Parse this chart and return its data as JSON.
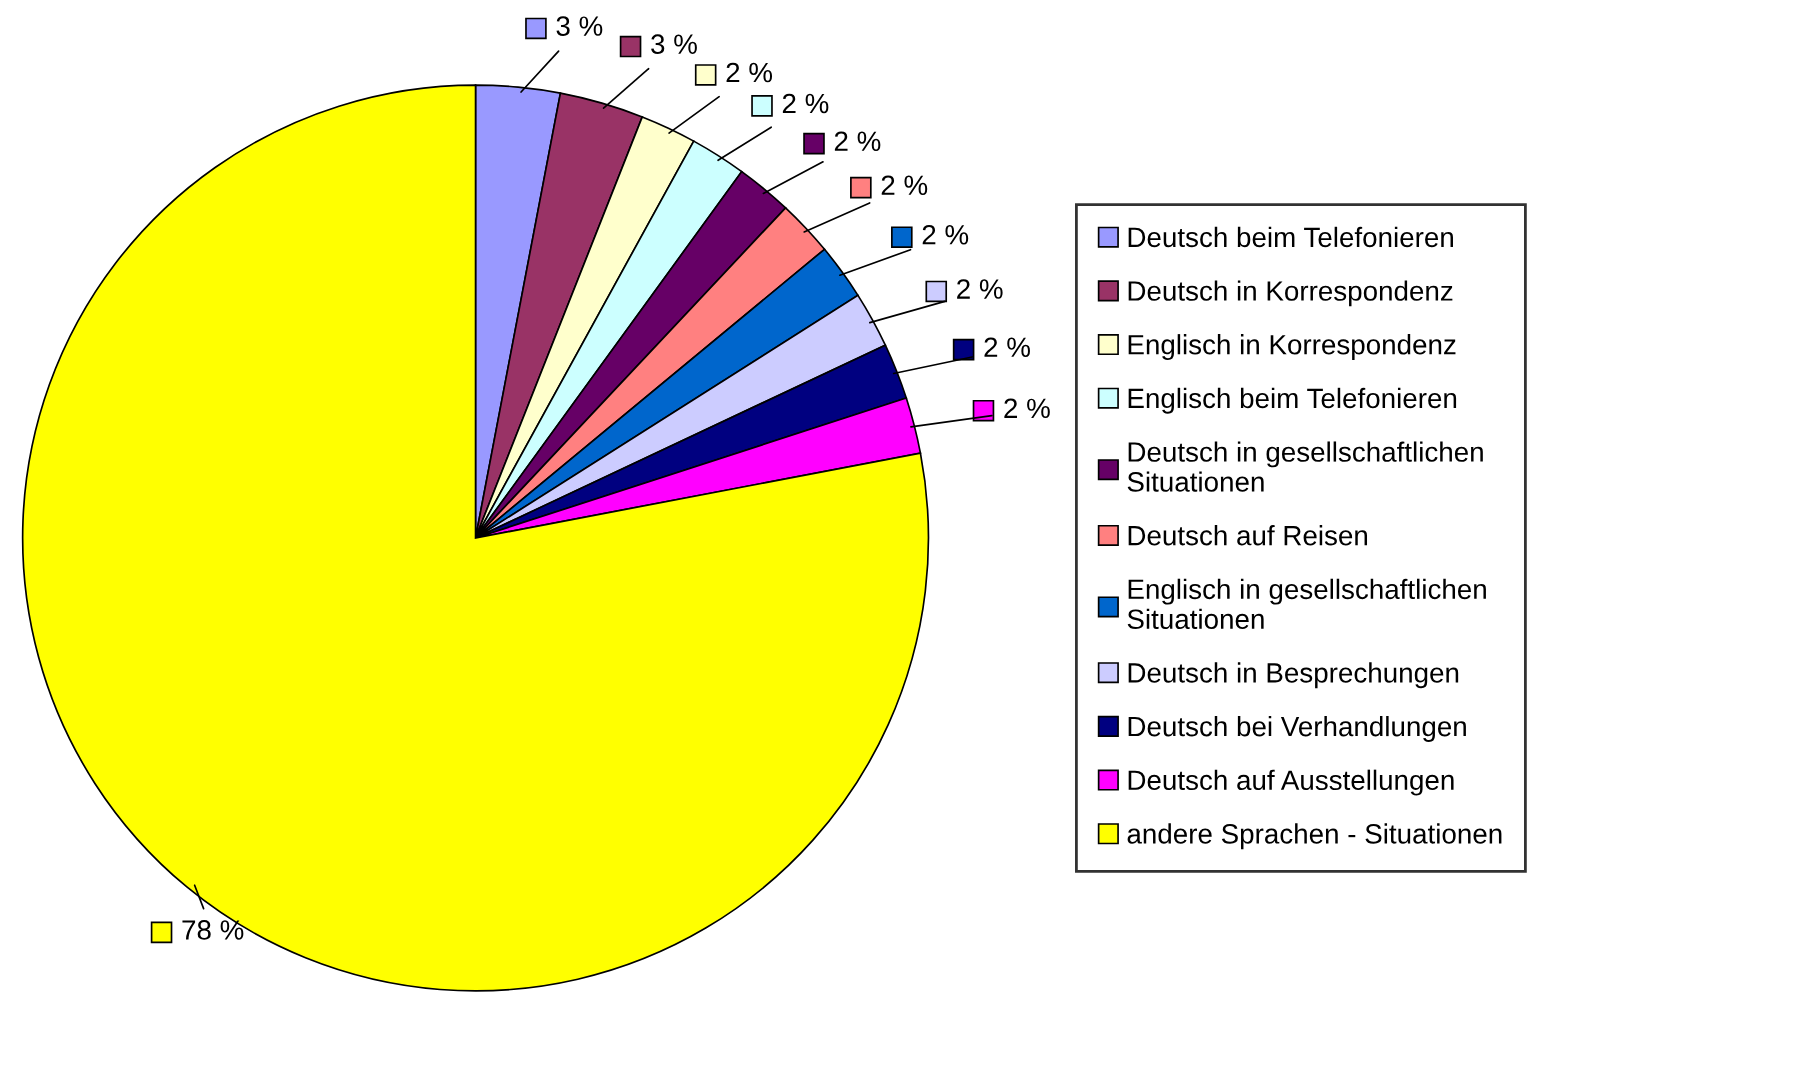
{
  "chart_data": {
    "type": "pie",
    "categories": [
      "Deutsch beim Telefonieren",
      "Deutsch in Korrespondenz",
      "Englisch in Korrespondenz",
      "Englisch beim Telefonieren",
      "Deutsch in gesellschaftlichen Situationen",
      "Deutsch auf Reisen",
      "Englisch in gesellschaftlichen Situationen",
      "Deutsch in Besprechungen",
      "Deutsch bei Verhandlungen",
      "Deutsch auf Ausstellungen",
      "andere Sprachen - Situationen"
    ],
    "values": [
      3,
      3,
      2,
      2,
      2,
      2,
      2,
      2,
      2,
      2,
      78
    ],
    "colors": [
      "#9999ff",
      "#993366",
      "#ffffcc",
      "#ccffff",
      "#660066",
      "#ff8080",
      "#0066cc",
      "#ccccff",
      "#000080",
      "#ff00ff",
      "#ffff00"
    ],
    "value_labels": [
      "3 %",
      "3 %",
      "2 %",
      "2 %",
      "2 %",
      "2 %",
      "2 %",
      "2 %",
      "2 %",
      "2 %",
      "78 %"
    ],
    "legend": "right"
  }
}
